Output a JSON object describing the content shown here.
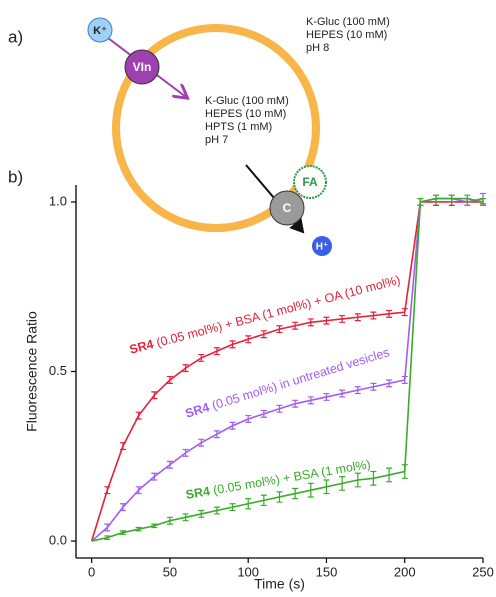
{
  "panel_labels": [
    "a)",
    "b)"
  ],
  "diagram": {
    "outside": [
      "K-Gluc (100 mM)",
      "HEPES (10 mM)",
      "pH 8"
    ],
    "inside": [
      "K-Gluc (100 mM)",
      "HEPES (10 mM)",
      "HPTS (1 mM)",
      "pH 7"
    ],
    "ions": [
      "K⁺",
      "H⁺"
    ],
    "transporters": [
      "VIn",
      "C",
      "FA"
    ]
  },
  "chart_data": {
    "type": "line",
    "x_label": "Time (s)",
    "y_label": "Fluorescence Ratio",
    "x": [
      0,
      10,
      20,
      30,
      40,
      50,
      60,
      70,
      80,
      90,
      100,
      110,
      120,
      130,
      140,
      150,
      160,
      170,
      180,
      190,
      200,
      210,
      220,
      230,
      240,
      250
    ],
    "series": [
      {
        "color": "#e8203a",
        "label_parts": [
          "SR4",
          " (0.05 mol%) + BSA (1 mol%) + OA (10 mol%)"
        ],
        "values": [
          0,
          0.15,
          0.28,
          0.37,
          0.43,
          0.475,
          0.51,
          0.54,
          0.56,
          0.58,
          0.595,
          0.61,
          0.625,
          0.635,
          0.645,
          0.65,
          0.655,
          0.66,
          0.665,
          0.67,
          0.675,
          1.0,
          1.0,
          1.0,
          1.0,
          1.0
        ],
        "errors": [
          0,
          0.01,
          0.01,
          0.01,
          0.01,
          0.01,
          0.01,
          0.01,
          0.01,
          0.01,
          0.01,
          0.01,
          0.01,
          0.01,
          0.01,
          0.01,
          0.01,
          0.01,
          0.01,
          0.01,
          0.01,
          0.01,
          0.01,
          0.01,
          0.01,
          0.01
        ]
      },
      {
        "color": "#a25cf0",
        "label_parts": [
          "SR4",
          " (0.05 mol%) in untreated vesicles"
        ],
        "values": [
          0,
          0.04,
          0.1,
          0.15,
          0.19,
          0.225,
          0.26,
          0.29,
          0.315,
          0.34,
          0.36,
          0.375,
          0.39,
          0.405,
          0.415,
          0.425,
          0.435,
          0.445,
          0.455,
          0.465,
          0.475,
          1.0,
          1.01,
          1.01,
          1.0,
          1.01
        ],
        "errors": [
          0,
          0.01,
          0.01,
          0.01,
          0.01,
          0.01,
          0.01,
          0.01,
          0.01,
          0.01,
          0.01,
          0.01,
          0.01,
          0.01,
          0.01,
          0.01,
          0.01,
          0.01,
          0.01,
          0.01,
          0.01,
          0.01,
          0.01,
          0.01,
          0.01,
          0.015
        ]
      },
      {
        "color": "#3aab2a",
        "label_parts": [
          "SR4",
          " (0.05 mol%) + BSA (1 mol%)"
        ],
        "values": [
          0,
          0.01,
          0.025,
          0.035,
          0.045,
          0.06,
          0.07,
          0.08,
          0.09,
          0.1,
          0.11,
          0.12,
          0.13,
          0.14,
          0.15,
          0.16,
          0.17,
          0.18,
          0.185,
          0.195,
          0.205,
          1.0,
          1.01,
          1.01,
          1.01,
          1.0
        ],
        "errors": [
          0,
          0.005,
          0.005,
          0.005,
          0.005,
          0.01,
          0.01,
          0.01,
          0.01,
          0.01,
          0.015,
          0.015,
          0.015,
          0.015,
          0.02,
          0.02,
          0.02,
          0.02,
          0.02,
          0.02,
          0.02,
          0.01,
          0.01,
          0.01,
          0.01,
          0.01
        ]
      }
    ],
    "xlim": [
      -10,
      250
    ],
    "ylim": [
      -0.05,
      1.05
    ],
    "xticks": [
      0,
      50,
      100,
      150,
      200,
      250
    ],
    "yticks": [
      {
        "value": 0,
        "label": "0.0"
      },
      {
        "value": 0.5,
        "label": "0.5"
      },
      {
        "value": 1,
        "label": "1.0"
      }
    ]
  }
}
